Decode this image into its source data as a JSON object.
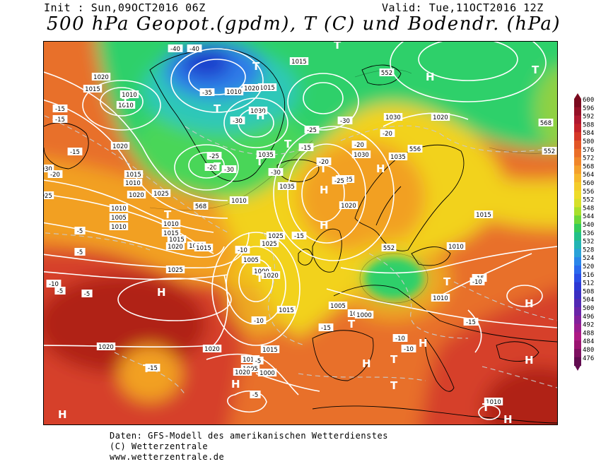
{
  "header": {
    "init": "Init : Sun,09OCT2016 06Z",
    "valid": "Valid: Tue,11OCT2016 12Z",
    "title": "500 hPa Geopot.(gpdm), T (C) und Bodendr. (hPa)"
  },
  "footer": {
    "line1": "Daten: GFS-Modell des amerikanischen Wetterdienstes",
    "line2": "(C) Wetterzentrale",
    "line3": "www.wetterzentrale.de"
  },
  "colors": {
    "deep_blue": "#1a3ccc",
    "blue": "#2f7ce8",
    "cyan": "#2fc8b8",
    "green": "#2fd06a",
    "light_green": "#7be33a",
    "yellow": "#f2d21c",
    "orange": "#f2a024",
    "dark_orange": "#e8702a",
    "red": "#d6402a",
    "dark_red": "#b02218",
    "land_outline": "#000000",
    "isobar": "#ffffff",
    "isotherm": "#bfbfbf"
  },
  "legend": {
    "values": [
      "600",
      "596",
      "592",
      "588",
      "584",
      "580",
      "576",
      "572",
      "568",
      "564",
      "560",
      "556",
      "552",
      "548",
      "544",
      "540",
      "536",
      "532",
      "528",
      "524",
      "520",
      "516",
      "512",
      "508",
      "504",
      "500",
      "496",
      "492",
      "488",
      "484",
      "480",
      "476"
    ],
    "colors": [
      "#7a0a1e",
      "#951027",
      "#b01830",
      "#c4222a",
      "#d63828",
      "#e25526",
      "#ea6e28",
      "#f0862a",
      "#f4a02c",
      "#f6b82c",
      "#f4cc2a",
      "#eedc2a",
      "#d6e02a",
      "#a8e02c",
      "#6cd83a",
      "#34cc5a",
      "#22c088",
      "#22b4b4",
      "#2aa2d8",
      "#2a86ea",
      "#2a6aee",
      "#2a4ee6",
      "#2c38d4",
      "#3a2ec2",
      "#5228b4",
      "#6a24a8",
      "#82209c",
      "#9a1c90",
      "#ae1a84",
      "#9a1470",
      "#7e1060",
      "#620c50"
    ]
  },
  "map_labels": {
    "isobars": [
      "1020",
      "1015",
      "1010",
      "1010",
      "1010",
      "1015",
      "1020",
      "1025",
      "1030",
      "1025",
      "1020",
      "1010",
      "1005",
      "1010",
      "1015",
      "1020",
      "1025",
      "1020",
      "1015",
      "1010",
      "1005",
      "1000",
      "1020",
      "1015",
      "1020",
      "1020",
      "1015",
      "1010",
      "1005",
      "1000",
      "1015",
      "1020",
      "1025",
      "1030",
      "1035",
      "1035",
      "1030",
      "1025",
      "1020",
      "1015",
      "1025",
      "1030",
      "1035",
      "1020",
      "1015",
      "1010",
      "1005",
      "1000",
      "1010",
      "1015",
      "1010",
      "1020",
      "1015",
      "1010",
      "1010"
    ],
    "temperatures": [
      "-15",
      "-15",
      "-5",
      "-5",
      "-5",
      "-5",
      "-10",
      "-10",
      "-15",
      "-20",
      "-25",
      "-30",
      "-35",
      "-40",
      "-40",
      "-30",
      "-30",
      "-20",
      "-20",
      "-20",
      "-20",
      "-25",
      "-25",
      "-30",
      "-15",
      "-15",
      "-10",
      "-15",
      "-15",
      "-10",
      "-10",
      "-15",
      "-15",
      "-5",
      "-5",
      "-10"
    ],
    "contours_gpdm": [
      "568",
      "568",
      "552",
      "556",
      "552",
      "552"
    ],
    "pressure_centers_H": [
      "H",
      "H",
      "H",
      "H",
      "H",
      "H",
      "H",
      "H",
      "H",
      "H",
      "H",
      "H",
      "H"
    ],
    "pressure_centers_T": [
      "T",
      "T",
      "T",
      "T",
      "T",
      "T",
      "T",
      "T",
      "T",
      "T",
      "T",
      "T",
      "T",
      "T",
      "T",
      "T",
      "T"
    ]
  }
}
